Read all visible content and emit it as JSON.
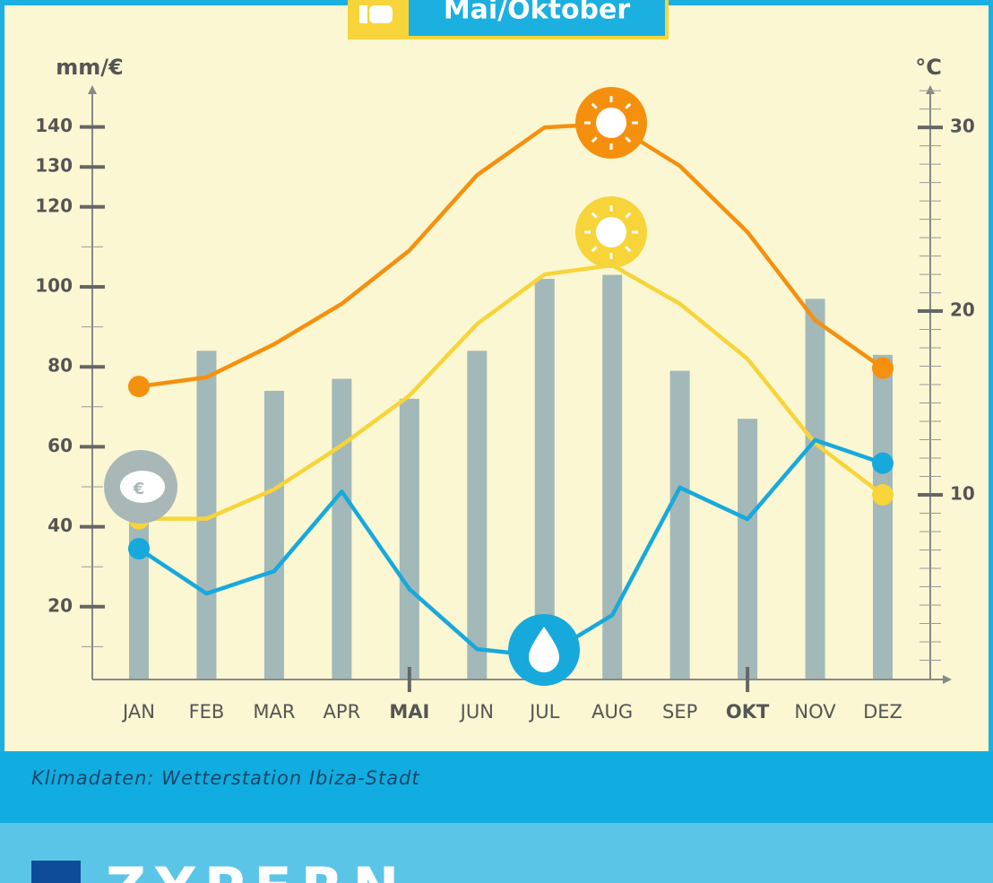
{
  "banner": "Mai/Oktober",
  "chart_data": {
    "type": "bar-line",
    "y_label": "mm/€",
    "y2_label": "°C",
    "categories": [
      "JAN",
      "FEB",
      "MAR",
      "APR",
      "MAI",
      "JUN",
      "JUL",
      "AUG",
      "SEP",
      "OKT",
      "NOV",
      "DEZ"
    ],
    "bold_categories": [
      4,
      9
    ],
    "values": [
      44,
      84,
      74,
      77,
      72,
      84,
      102,
      103,
      79,
      67,
      97,
      83
    ],
    "color": "#a3b8b8",
    "series": [
      {
        "color": "#f5900f",
        "axis": "y2",
        "values": [
          15.9,
          16.4,
          18.2,
          20.4,
          23.3,
          27.4,
          30.0,
          30.2,
          27.9,
          24.3,
          19.5,
          16.9
        ]
      },
      {
        "color": "#f7d43a",
        "axis": "y2",
        "values": [
          8.7,
          8.7,
          10.3,
          12.7,
          15.4,
          19.3,
          22.0,
          22.5,
          20.4,
          17.4,
          12.8,
          10.0
        ]
      },
      {
        "color": "#17a9dc",
        "axis": "y",
        "values": [
          34.5,
          23.3,
          28.9,
          48.8,
          24.4,
          9.4,
          7.6,
          17.9,
          49.8,
          41.9,
          61.7,
          55.9
        ]
      }
    ],
    "ylim": [
      0,
      150
    ],
    "yticks": [
      20,
      40,
      60,
      80,
      100,
      120,
      130,
      140
    ],
    "yminor_step": 10,
    "y2lim": [
      0,
      32.2
    ],
    "y2ticks": [
      10,
      20,
      30
    ],
    "y2minor_step": 1
  },
  "caption": "Klimadaten: Wetterstation Ibiza-Stadt",
  "next_section": "ZYPERN"
}
